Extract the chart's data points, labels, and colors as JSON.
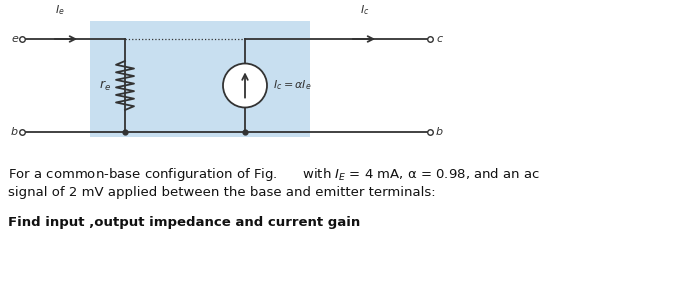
{
  "bg_color": "#ffffff",
  "box_color": "#c8dff0",
  "line_color": "#333333",
  "text_color": "#111111",
  "font_size_labels": 8,
  "font_size_text": 9.5,
  "font_size_bold": 9.5,
  "text1": "For a common-base configuration of Fig.      with $I_E$ = 4 mA, α = 0.98, and an ac",
  "text2": "signal of 2 mV applied between the base and emitter terminals:",
  "text3": "Find input ,output impedance and current gain"
}
